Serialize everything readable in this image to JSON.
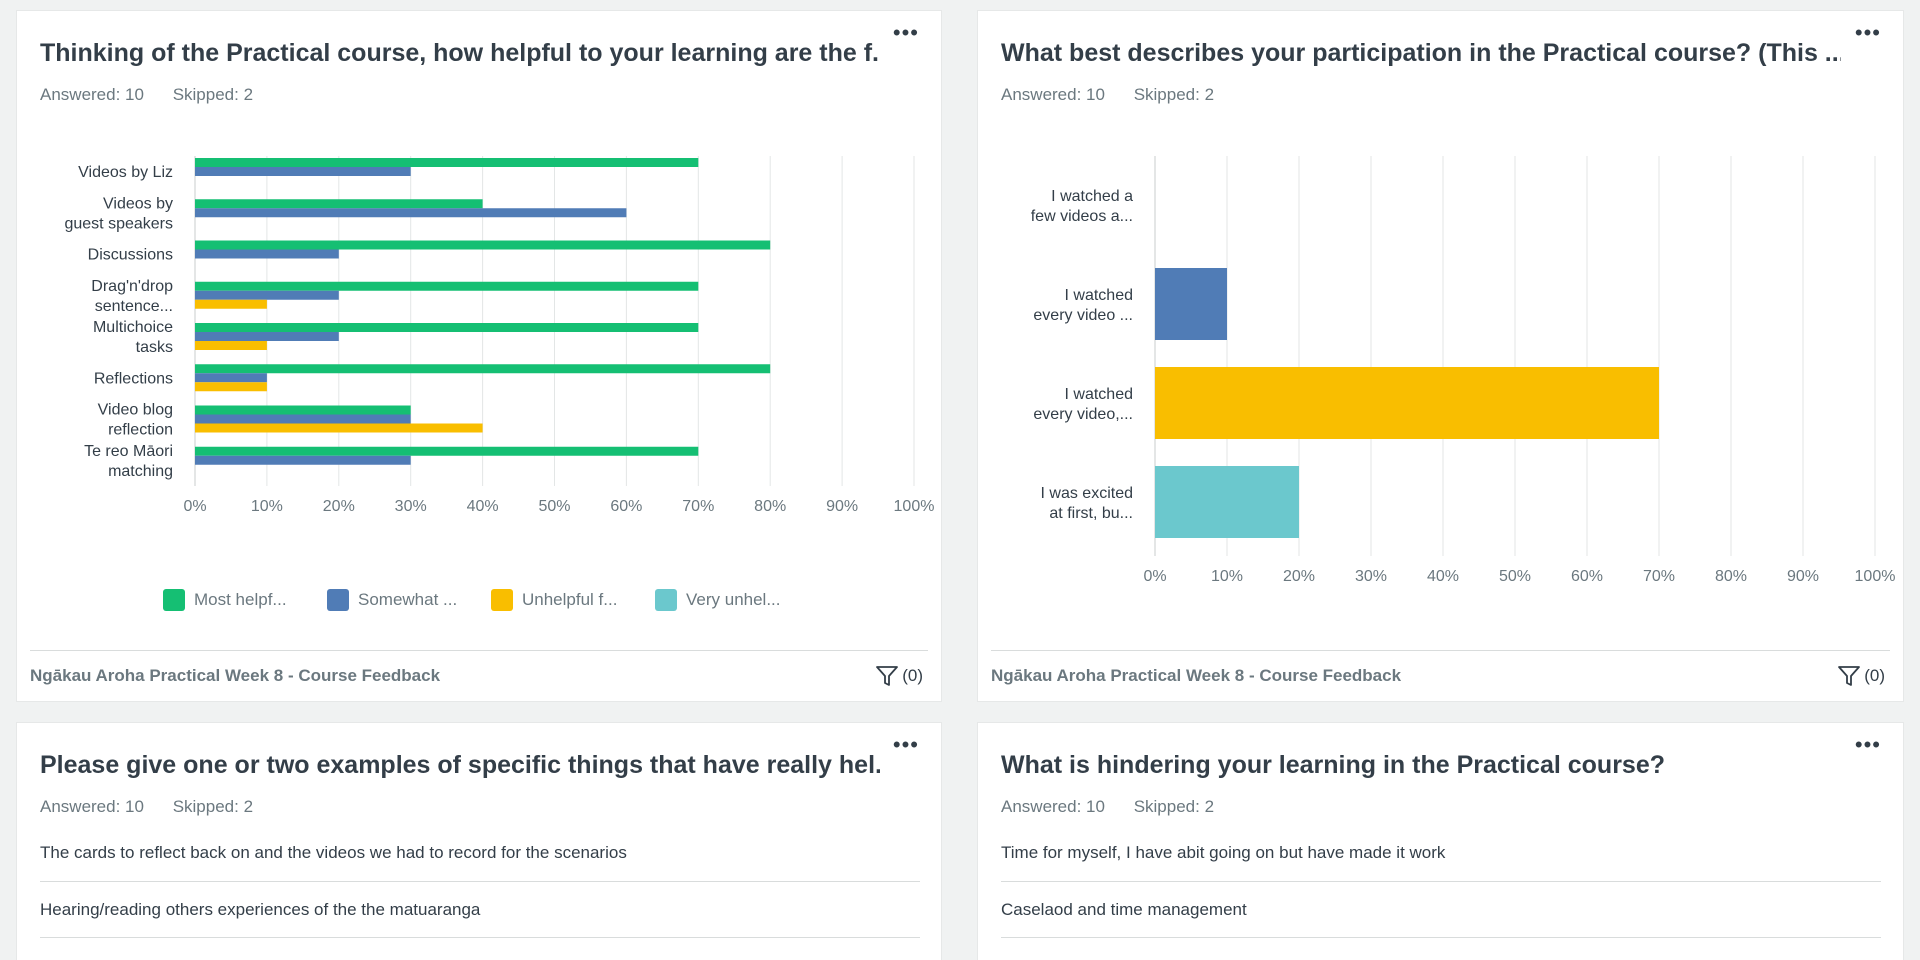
{
  "cards": [
    {
      "title": "Thinking of the Practical course, how helpful to your learning are the f...",
      "answered": "Answered: 10",
      "skipped": "Skipped: 2",
      "more": "•••",
      "footer": "Ngākau Aroha Practical Week 8 - Course Feedback",
      "filter_count": "(0)"
    },
    {
      "title": "What best describes your participation in the Practical course? (This ...",
      "answered": "Answered: 10",
      "skipped": "Skipped: 2",
      "more": "•••",
      "footer": "Ngākau Aroha Practical Week 8 - Course Feedback",
      "filter_count": "(0)"
    },
    {
      "title": "Please give one or two examples of specific things that have really hel...",
      "answered": "Answered: 10",
      "skipped": "Skipped: 2",
      "more": "•••",
      "responses": [
        "The cards to reflect back on and the videos we had to record for the scenarios",
        "Hearing/reading others experiences of the the matuaranga"
      ]
    },
    {
      "title": "What is hindering your learning in the Practical course?",
      "answered": "Answered: 10",
      "skipped": "Skipped: 2",
      "more": "•••",
      "responses": [
        "Time for myself, I have abit going on but have made it work",
        "Caselaod and time management"
      ]
    }
  ],
  "colors": {
    "most_helpful": "#15bf73",
    "somewhat": "#507cb6",
    "unhelpful": "#f9be00",
    "very_unhelpful": "#6bc8cd"
  },
  "chart_data": [
    {
      "type": "bar",
      "orientation": "horizontal",
      "categories": [
        [
          "Videos by Liz"
        ],
        [
          "Videos by",
          "guest speakers"
        ],
        [
          "Discussions"
        ],
        [
          "Drag'n'drop",
          "sentence..."
        ],
        [
          "Multichoice",
          "tasks"
        ],
        [
          "Reflections"
        ],
        [
          "Video blog",
          "reflection"
        ],
        [
          "Te reo Māori",
          "matching"
        ]
      ],
      "series": [
        {
          "name": "Most helpf...",
          "color": "#15bf73",
          "values": [
            70,
            40,
            80,
            70,
            70,
            80,
            30,
            70
          ]
        },
        {
          "name": "Somewhat ...",
          "color": "#507cb6",
          "values": [
            30,
            60,
            20,
            20,
            20,
            10,
            30,
            30
          ]
        },
        {
          "name": "Unhelpful f...",
          "color": "#f9be00",
          "values": [
            0,
            0,
            0,
            10,
            10,
            10,
            40,
            0
          ]
        },
        {
          "name": "Very unhel...",
          "color": "#6bc8cd",
          "values": [
            0,
            0,
            0,
            0,
            0,
            0,
            0,
            0
          ]
        }
      ],
      "xticks": [
        "0%",
        "10%",
        "20%",
        "30%",
        "40%",
        "50%",
        "60%",
        "70%",
        "80%",
        "90%",
        "100%"
      ],
      "xlim": [
        0,
        100
      ],
      "legend": "bottom"
    },
    {
      "type": "bar",
      "orientation": "horizontal",
      "categories": [
        [
          "I watched a",
          "few videos a..."
        ],
        [
          "I watched",
          "every video ..."
        ],
        [
          "I watched",
          "every video,..."
        ],
        [
          "I was excited",
          "at first, bu..."
        ]
      ],
      "values": [
        0,
        10,
        70,
        20
      ],
      "colors": [
        "#15bf73",
        "#507cb6",
        "#f9be00",
        "#6bc8cd"
      ],
      "xticks": [
        "0%",
        "10%",
        "20%",
        "30%",
        "40%",
        "50%",
        "60%",
        "70%",
        "80%",
        "90%",
        "100%"
      ],
      "xlim": [
        0,
        100
      ]
    }
  ]
}
